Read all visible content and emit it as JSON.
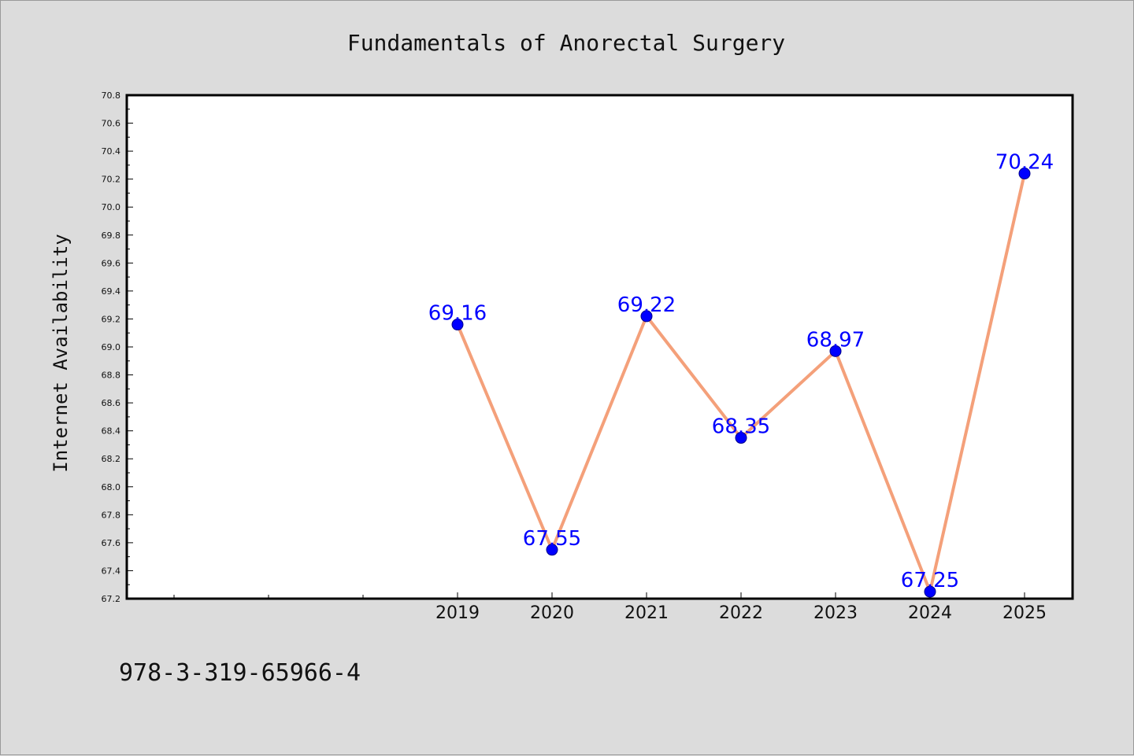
{
  "chart_data": {
    "type": "line",
    "title": "Fundamentals of Anorectal Surgery",
    "xlabel": "",
    "ylabel": "Internet Availability",
    "categories": [
      "2019",
      "2020",
      "2021",
      "2022",
      "2023",
      "2024",
      "2025"
    ],
    "series": [
      {
        "values": [
          69.16,
          67.55,
          69.22,
          68.35,
          68.97,
          67.25,
          70.24
        ],
        "line_color": "#f4a07a",
        "marker_color": "#0000ff"
      }
    ],
    "data_labels": [
      "69.16",
      "67.55",
      "69.22",
      "68.35",
      "68.97",
      "67.25",
      "70.24"
    ],
    "ylim": [
      67.2,
      70.8
    ],
    "yticks": [
      "67.2",
      "67.4",
      "67.6",
      "67.8",
      "68.0",
      "68.2",
      "68.4",
      "68.6",
      "68.8",
      "69.0",
      "69.2",
      "69.4",
      "69.6",
      "69.8",
      "70.0",
      "70.2",
      "70.4",
      "70.6",
      "70.8"
    ],
    "grid": false,
    "legend": "none",
    "footnote": "978-3-319-65966-4"
  },
  "colors": {
    "background": "#dcdcdc",
    "plot_background": "#ffffff",
    "data_label": "#0000ff"
  }
}
